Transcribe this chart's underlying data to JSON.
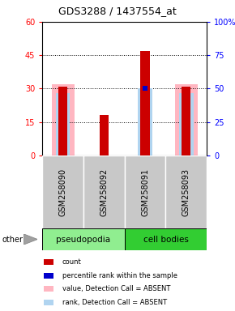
{
  "title": "GDS3288 / 1437554_at",
  "samples": [
    "GSM258090",
    "GSM258092",
    "GSM258091",
    "GSM258093"
  ],
  "count_values": [
    31,
    18,
    47,
    31
  ],
  "pink_values": [
    32,
    0,
    0,
    32
  ],
  "light_blue_values": [
    28,
    0,
    30,
    28
  ],
  "blue_marker_values": [
    0,
    1,
    50,
    0
  ],
  "ylim_left": [
    0,
    60
  ],
  "ylim_right": [
    0,
    100
  ],
  "yticks_left": [
    0,
    15,
    30,
    45,
    60
  ],
  "yticks_right": [
    0,
    25,
    50,
    75,
    100
  ],
  "group_colors": [
    "#90EE90",
    "#32CD32"
  ],
  "group_labels": [
    "pseudopodia",
    "cell bodies"
  ],
  "bar_color_red": "#CC0000",
  "bar_color_pink": "#FFB6C1",
  "bar_color_lightblue": "#B0D4F0",
  "bar_color_blue": "#0000CC",
  "bg_gray": "#C8C8C8",
  "legend_items": [
    {
      "color": "#CC0000",
      "label": "count"
    },
    {
      "color": "#0000CC",
      "label": "percentile rank within the sample"
    },
    {
      "color": "#FFB6C1",
      "label": "value, Detection Call = ABSENT"
    },
    {
      "color": "#B0D4F0",
      "label": "rank, Detection Call = ABSENT"
    }
  ]
}
